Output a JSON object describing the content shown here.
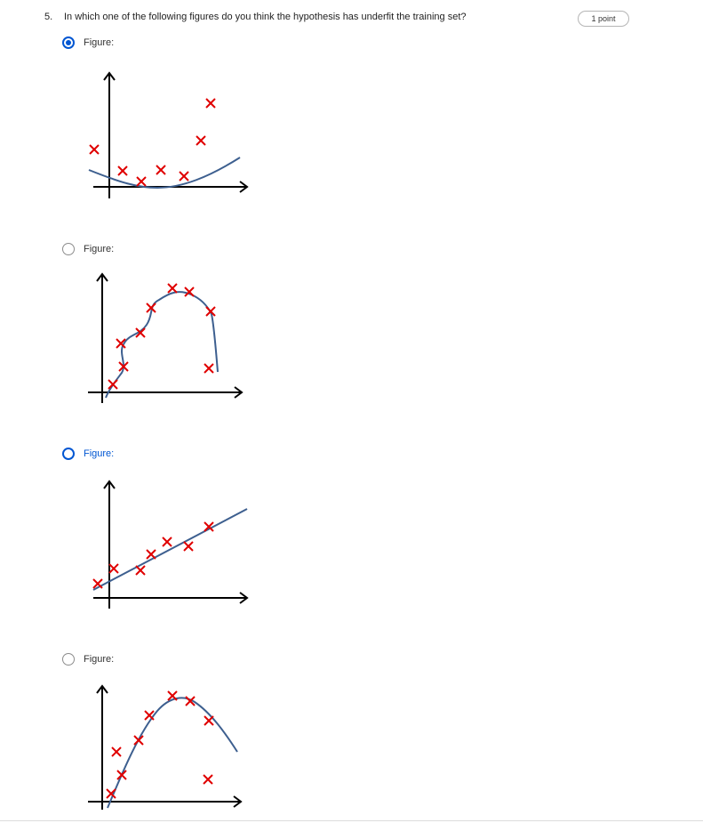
{
  "question": {
    "number": "5.",
    "text": "In which one of the following figures do you think the hypothesis has underfit the training set?",
    "points": "1 point"
  },
  "options": [
    {
      "label": "Figure:",
      "selected": true,
      "image_description": "curve"
    },
    {
      "label": "Figure:",
      "selected": false,
      "image_description": "overfit"
    },
    {
      "label": "Figure:",
      "selected": false,
      "image_description": "line"
    },
    {
      "label": "Figure:",
      "selected": false,
      "image_description": "quadratic"
    }
  ],
  "colors": {
    "accent": "#0056d2",
    "marker": "#e00000",
    "curve": "#3d5f8f",
    "axis": "#000000"
  }
}
